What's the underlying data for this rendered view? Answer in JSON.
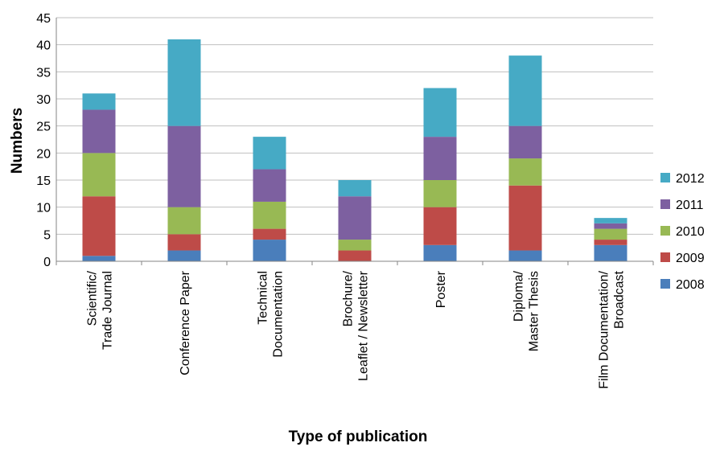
{
  "chart_data": {
    "type": "bar",
    "stacked": true,
    "title": "",
    "xlabel": "Type of publication",
    "ylabel": "Numbers",
    "ylim": [
      0,
      45
    ],
    "yticks": [
      0,
      5,
      10,
      15,
      20,
      25,
      30,
      35,
      40,
      45
    ],
    "grid": true,
    "legend_position": "right",
    "categories": [
      [
        "Scientific/",
        "Trade Journal"
      ],
      [
        "Conference Paper"
      ],
      [
        "Technical",
        "Documentation"
      ],
      [
        "Brochure/",
        "Leaflet / Newsletter"
      ],
      [
        "Poster"
      ],
      [
        "Diploma/",
        "Master Thesis"
      ],
      [
        "Film Documentation/",
        "Broadcast"
      ]
    ],
    "series": [
      {
        "name": "2008",
        "color": "#4a7ebb",
        "values": [
          1,
          2,
          4,
          0,
          3,
          2,
          3
        ]
      },
      {
        "name": "2009",
        "color": "#be4b48",
        "values": [
          11,
          3,
          2,
          2,
          7,
          12,
          1
        ]
      },
      {
        "name": "2010",
        "color": "#98b954",
        "values": [
          8,
          5,
          5,
          2,
          5,
          5,
          2
        ]
      },
      {
        "name": "2011",
        "color": "#7d60a0",
        "values": [
          8,
          15,
          6,
          8,
          8,
          6,
          1
        ]
      },
      {
        "name": "2012",
        "color": "#46aac5",
        "values": [
          3,
          16,
          6,
          3,
          9,
          13,
          1
        ]
      }
    ]
  }
}
